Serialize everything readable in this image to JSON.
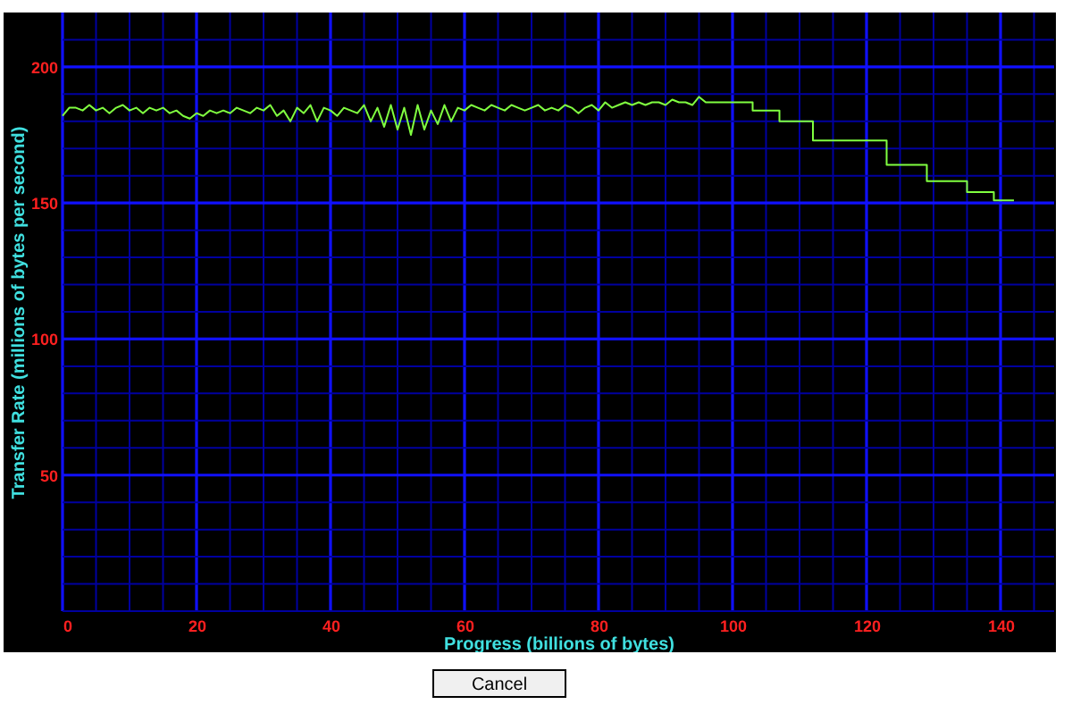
{
  "chart_data": {
    "type": "line",
    "xlabel": "Progress (billions of bytes)",
    "ylabel": "Transfer Rate (millions of bytes per second)",
    "xlim": [
      0,
      148
    ],
    "ylim": [
      0,
      220
    ],
    "xticks": [
      0,
      {
        "value": 5,
        "label": null
      },
      {
        "value": 10,
        "label": null
      },
      {
        "value": 15,
        "label": null
      },
      20,
      {
        "value": 25,
        "label": null
      },
      {
        "value": 30,
        "label": null
      },
      {
        "value": 35,
        "label": null
      },
      40,
      {
        "value": 45,
        "label": null
      },
      {
        "value": 50,
        "label": null
      },
      {
        "value": 55,
        "label": null
      },
      60,
      {
        "value": 65,
        "label": null
      },
      {
        "value": 70,
        "label": null
      },
      {
        "value": 75,
        "label": null
      },
      80,
      {
        "value": 85,
        "label": null
      },
      {
        "value": 90,
        "label": null
      },
      {
        "value": 95,
        "label": null
      },
      100,
      {
        "value": 105,
        "label": null
      },
      {
        "value": 110,
        "label": null
      },
      {
        "value": 115,
        "label": null
      },
      120,
      {
        "value": 125,
        "label": null
      },
      {
        "value": 130,
        "label": null
      },
      {
        "value": 135,
        "label": null
      },
      140,
      {
        "value": 145,
        "label": null
      }
    ],
    "yticks": [
      {
        "value": 0,
        "label": null
      },
      {
        "value": 10,
        "label": null
      },
      {
        "value": 20,
        "label": null
      },
      {
        "value": 30,
        "label": null
      },
      {
        "value": 40,
        "label": null
      },
      50,
      {
        "value": 60,
        "label": null
      },
      {
        "value": 70,
        "label": null
      },
      {
        "value": 80,
        "label": null
      },
      {
        "value": 90,
        "label": null
      },
      100,
      {
        "value": 110,
        "label": null
      },
      {
        "value": 120,
        "label": null
      },
      {
        "value": 130,
        "label": null
      },
      {
        "value": 140,
        "label": null
      },
      150,
      {
        "value": 160,
        "label": null
      },
      {
        "value": 170,
        "label": null
      },
      {
        "value": 180,
        "label": null
      },
      {
        "value": 190,
        "label": null
      },
      200,
      {
        "value": 210,
        "label": null
      }
    ],
    "grid": true,
    "marker": "none",
    "line_style": "solid",
    "annotations": [
      "Cancel"
    ],
    "series": [
      {
        "color": "#80ff40",
        "x": [
          0,
          1,
          2,
          3,
          4,
          5,
          6,
          7,
          8,
          9,
          10,
          11,
          12,
          13,
          14,
          15,
          16,
          17,
          18,
          19,
          20,
          21,
          22,
          23,
          24,
          25,
          26,
          27,
          28,
          29,
          30,
          31,
          32,
          33,
          34,
          35,
          36,
          37,
          38,
          39,
          40,
          41,
          42,
          43,
          44,
          45,
          46,
          47,
          48,
          49,
          50,
          51,
          52,
          53,
          54,
          55,
          56,
          57,
          58,
          59,
          60,
          61,
          62,
          63,
          64,
          65,
          66,
          67,
          68,
          69,
          70,
          71,
          72,
          73,
          74,
          75,
          76,
          77,
          78,
          79,
          80,
          81,
          82,
          83,
          84,
          85,
          86,
          87,
          88,
          89,
          90,
          91,
          92,
          93,
          94,
          95,
          96,
          97,
          98,
          99,
          100,
          103,
          103,
          107,
          107,
          112,
          112,
          123,
          123,
          129,
          129,
          135,
          135,
          139,
          139,
          142
        ],
        "values": [
          182,
          185,
          185,
          184,
          186,
          184,
          185,
          183,
          185,
          186,
          184,
          185,
          183,
          185,
          184,
          185,
          183,
          184,
          182,
          181,
          183,
          182,
          184,
          183,
          184,
          183,
          185,
          184,
          183,
          185,
          184,
          186,
          182,
          184,
          180,
          185,
          183,
          186,
          180,
          185,
          184,
          182,
          185,
          184,
          183,
          186,
          180,
          185,
          178,
          186,
          177,
          185,
          175,
          186,
          177,
          184,
          179,
          186,
          180,
          185,
          184,
          186,
          185,
          184,
          186,
          185,
          184,
          186,
          185,
          184,
          185,
          186,
          184,
          185,
          184,
          186,
          185,
          183,
          185,
          186,
          184,
          187,
          185,
          186,
          187,
          186,
          187,
          186,
          187,
          187,
          186,
          188,
          187,
          187,
          186,
          189,
          187,
          187,
          187,
          187,
          187,
          187,
          184,
          184,
          180,
          180,
          173,
          173,
          164,
          164,
          158,
          158,
          154,
          154,
          151,
          151
        ]
      }
    ]
  }
}
